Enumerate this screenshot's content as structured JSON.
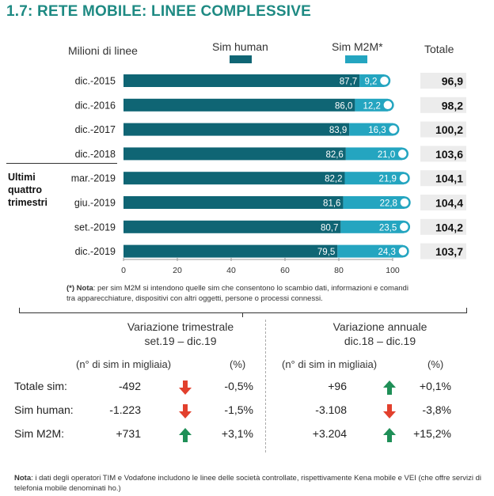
{
  "title": "1.7: RETE MOBILE: LINEE COMPLESSIVE",
  "chart_header": {
    "ylabel": "Milioni di linee",
    "legend_human": "Sim human",
    "legend_m2m": "Sim M2M*",
    "totale": "Totale",
    "side_label": [
      "Ultimi",
      "quattro",
      "trimestri"
    ]
  },
  "colors": {
    "human": "#0f6574",
    "m2m": "#24a5c0",
    "title": "#1e8a83",
    "total_bg": "#ececec",
    "up": "#1f8f57",
    "down": "#e2402d"
  },
  "chart_data": {
    "type": "bar",
    "orientation": "horizontal",
    "stacked": true,
    "categories": [
      "dic.-2015",
      "dic.-2016",
      "dic.-2017",
      "dic.-2018",
      "mar.-2019",
      "giu.-2019",
      "set.-2019",
      "dic.-2019"
    ],
    "series": [
      {
        "name": "Sim human",
        "values": [
          87.7,
          86.0,
          83.9,
          82.6,
          82.2,
          81.6,
          80.7,
          79.5
        ],
        "labels": [
          "87,7",
          "86,0",
          "83,9",
          "82,6",
          "82,2",
          "81,6",
          "80,7",
          "79,5"
        ]
      },
      {
        "name": "Sim M2M*",
        "values": [
          9.2,
          12.2,
          16.3,
          21.0,
          21.9,
          22.8,
          23.5,
          24.3
        ],
        "labels": [
          "9,2",
          "12,2",
          "16,3",
          "21,0",
          "21,9",
          "22,8",
          "23,5",
          "24,3"
        ]
      }
    ],
    "totals": [
      "96,9",
      "98,2",
      "100,2",
      "103,6",
      "104,1",
      "104,4",
      "104,2",
      "103,7"
    ],
    "xticks": [
      "0",
      "20",
      "40",
      "60",
      "80",
      "100"
    ],
    "xlim": [
      0,
      110
    ],
    "grid": false,
    "legend": "top"
  },
  "note_top": {
    "bold": "(*) Nota",
    "text": ": per sim M2M si intendono quelle sim che consentono lo scambio dati, informazioni e comandi tra apparecchiature, dispositivi con altri oggetti, persone o processi connessi."
  },
  "quarterly": {
    "title_line1": "Variazione trimestrale",
    "title_line2": "set.19 – dic.19",
    "col_sims": "(n° di sim in migliaia)",
    "col_pct": "(%)"
  },
  "annual": {
    "title_line1": "Variazione annuale",
    "title_line2": "dic.18 – dic.19",
    "col_sims": "(n° di sim in migliaia)",
    "col_pct": "(%)"
  },
  "rows": [
    {
      "label": "Totale sim:",
      "q_val": "-492",
      "q_dir": "down",
      "q_pct": "-0,5%",
      "a_val": "+96",
      "a_dir": "up",
      "a_pct": "+0,1%"
    },
    {
      "label": "Sim human:",
      "q_val": "-1.223",
      "q_dir": "down",
      "q_pct": "-1,5%",
      "a_val": "-3.108",
      "a_dir": "down",
      "a_pct": "-3,8%"
    },
    {
      "label": "Sim M2M:",
      "q_val": "+731",
      "q_dir": "up",
      "q_pct": "+3,1%",
      "a_val": "+3.204",
      "a_dir": "up",
      "a_pct": "+15,2%"
    }
  ],
  "note_bottom": {
    "bold": "Nota",
    "text": ": i dati degli operatori TIM e Vodafone includono le linee delle società controllate, rispettivamente Kena mobile e VEI (che offre servizi di telefonia mobile denominati ho.)"
  }
}
